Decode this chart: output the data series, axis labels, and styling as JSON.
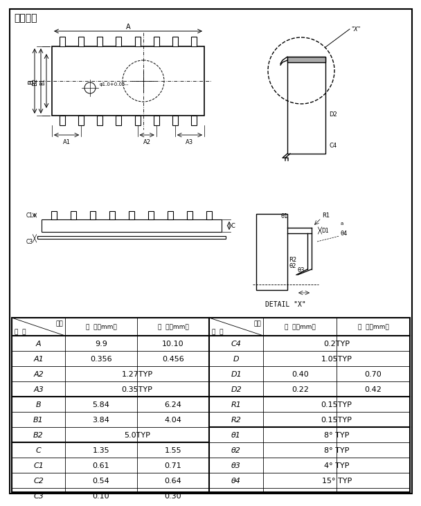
{
  "title": "封装形式",
  "background_color": "#ffffff",
  "table_left_rows": [
    [
      "A",
      "9.9",
      "10.10"
    ],
    [
      "A1",
      "0.356",
      "0.456"
    ],
    [
      "A2",
      "1.27TYP",
      ""
    ],
    [
      "A3",
      "0.35TYP",
      ""
    ],
    [
      "B",
      "5.84",
      "6.24"
    ],
    [
      "B1",
      "3.84",
      "4.04"
    ],
    [
      "B2",
      "5.0TYP",
      ""
    ],
    [
      "C",
      "1.35",
      "1.55"
    ],
    [
      "C1",
      "0.61",
      "0.71"
    ],
    [
      "C2",
      "0.54",
      "0.64"
    ],
    [
      "C3",
      "0.10",
      "0.30"
    ]
  ],
  "table_right_rows": [
    [
      "C4",
      "0.2TYP",
      ""
    ],
    [
      "D",
      "1.05TYP",
      ""
    ],
    [
      "D1",
      "0.40",
      "0.70"
    ],
    [
      "D2",
      "0.22",
      "0.42"
    ],
    [
      "R1",
      "0.15TYP",
      ""
    ],
    [
      "R2",
      "0.15TYP",
      ""
    ],
    [
      "θ1",
      "8° TYP",
      ""
    ],
    [
      "θ2",
      "8° TYP",
      ""
    ],
    [
      "θ3",
      "4° TYP",
      ""
    ],
    [
      "θ4",
      "15° TYP",
      ""
    ],
    [
      "",
      "",
      ""
    ]
  ],
  "detail_x_label": "DETAIL \"X\""
}
